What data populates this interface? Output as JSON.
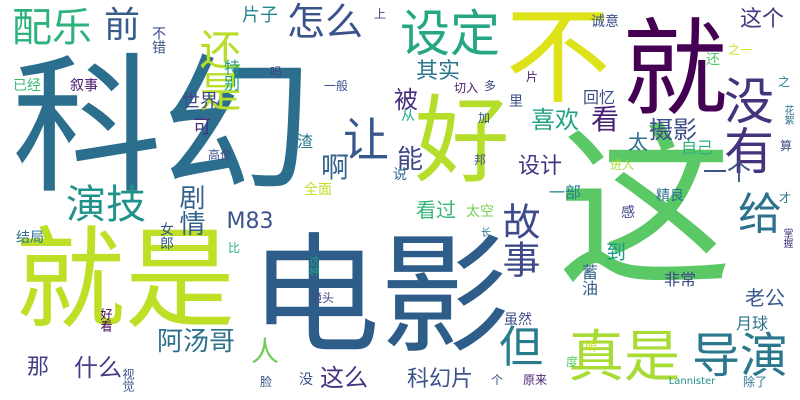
{
  "words": [
    {
      "text": "科幻",
      "color": "#2c6e8e"
    },
    {
      "text": "电影",
      "color": "#2f5d8a"
    },
    {
      "text": "这",
      "color": "#5ac864"
    },
    {
      "text": "就是",
      "color": "#bddf26"
    },
    {
      "text": "不",
      "color": "#dde318"
    },
    {
      "text": "就",
      "color": "#440154"
    },
    {
      "text": "好",
      "color": "#b5de2b"
    },
    {
      "text": "真是",
      "color": "#a8db34"
    },
    {
      "text": "导演",
      "color": "#2a788e"
    },
    {
      "text": "设定",
      "color": "#26a784"
    },
    {
      "text": "让",
      "color": "#38588c"
    },
    {
      "text": "没有",
      "color": "#46337e"
    },
    {
      "text": "还是",
      "color": "#b8de29"
    },
    {
      "text": "怎么",
      "color": "#3b528b"
    },
    {
      "text": "配乐",
      "color": "#2db27d"
    },
    {
      "text": "前",
      "color": "#365c8d"
    },
    {
      "text": "演技",
      "color": "#21918c"
    },
    {
      "text": "但",
      "color": "#287c8e"
    },
    {
      "text": "给",
      "color": "#2c728e"
    },
    {
      "text": "故事",
      "color": "#3e4a89"
    },
    {
      "text": "其实",
      "color": "#2c738e"
    },
    {
      "text": "被",
      "color": "#472d7b"
    },
    {
      "text": "看",
      "color": "#482173"
    },
    {
      "text": "能",
      "color": "#3f4889"
    },
    {
      "text": "喜欢",
      "color": "#20a386"
    },
    {
      "text": "设计",
      "color": "#453581"
    },
    {
      "text": "剧情",
      "color": "#33638d"
    },
    {
      "text": "M83",
      "color": "#3b528b"
    },
    {
      "text": "这个",
      "color": "#443983"
    },
    {
      "text": "一个",
      "color": "#3b528b"
    },
    {
      "text": "摄影",
      "color": "#3e4c8a"
    },
    {
      "text": "太",
      "color": "#2e6e8e"
    },
    {
      "text": "阿汤哥",
      "color": "#2d708e"
    },
    {
      "text": "人",
      "color": "#6ece58"
    },
    {
      "text": "这么",
      "color": "#46327e"
    },
    {
      "text": "什么",
      "color": "#433e85"
    },
    {
      "text": "那",
      "color": "#423f85"
    },
    {
      "text": "科幻片",
      "color": "#3a538b"
    },
    {
      "text": "老公",
      "color": "#38588c"
    },
    {
      "text": "看过",
      "color": "#35b779"
    },
    {
      "text": "啊",
      "color": "#33638d"
    },
    {
      "text": "片子",
      "color": "#23898e"
    },
    {
      "text": "可",
      "color": "#46307e"
    },
    {
      "text": "世界",
      "color": "#3f4788"
    },
    {
      "text": "特别",
      "color": "#1f9e89"
    },
    {
      "text": "到",
      "color": "#1e9b8a"
    },
    {
      "text": "非常",
      "color": "#3e4989"
    },
    {
      "text": "自己",
      "color": "#2db27d"
    },
    {
      "text": "月球",
      "color": "#2c728e"
    },
    {
      "text": "一部",
      "color": "#25848e"
    },
    {
      "text": "回忆",
      "color": "#3e4c8a"
    },
    {
      "text": "叙事",
      "color": "#481a6c"
    },
    {
      "text": "太空",
      "color": "#7ad151"
    },
    {
      "text": "全面",
      "color": "#c2df23"
    },
    {
      "text": "女郎",
      "color": "#38588c"
    },
    {
      "text": "结局",
      "color": "#2d708e"
    },
    {
      "text": "已经",
      "color": "#3bbb75"
    },
    {
      "text": "不错",
      "color": "#3b528b"
    },
    {
      "text": "高像",
      "color": "#3b528b"
    },
    {
      "text": "渣",
      "color": "#2a788e"
    },
    {
      "text": "从",
      "color": "#22a785"
    },
    {
      "text": "说",
      "color": "#31688e"
    },
    {
      "text": "蓄油",
      "color": "#35608d"
    },
    {
      "text": "虽然",
      "color": "#3e4a89"
    },
    {
      "text": "精良",
      "color": "#2e6e8e"
    },
    {
      "text": "感",
      "color": "#414487"
    },
    {
      "text": "进入",
      "color": "#addc30"
    },
    {
      "text": "诚意",
      "color": "#3b528b"
    },
    {
      "text": "里",
      "color": "#3b518b"
    },
    {
      "text": "片",
      "color": "#481a6c"
    },
    {
      "text": "多",
      "color": "#3e4a89"
    },
    {
      "text": "吗",
      "color": "#414487"
    },
    {
      "text": "一般",
      "color": "#3b528b"
    },
    {
      "text": "上",
      "color": "#3e4989"
    },
    {
      "text": "加",
      "color": "#3b528b"
    },
    {
      "text": "切入",
      "color": "#481a6c"
    },
    {
      "text": "邦",
      "color": "#3a538b"
    },
    {
      "text": "还",
      "color": "#58c765"
    },
    {
      "text": "之一",
      "color": "#d2e21b"
    },
    {
      "text": "之",
      "color": "#27808e"
    },
    {
      "text": "花絮",
      "color": "#2d708e"
    },
    {
      "text": "算",
      "color": "#3e4c8a"
    },
    {
      "text": "才",
      "color": "#2d708e"
    },
    {
      "text": "掌握",
      "color": "#433e85"
    },
    {
      "text": "比",
      "color": "#2db27d"
    },
    {
      "text": "这种",
      "color": "#20a486"
    },
    {
      "text": "长",
      "color": "#2e6e8e"
    },
    {
      "text": "好看",
      "color": "#440154"
    },
    {
      "text": "镜头",
      "color": "#3e4c8a"
    },
    {
      "text": "度",
      "color": "#5ec962"
    },
    {
      "text": "萌",
      "color": "#c8e020"
    },
    {
      "text": "视觉",
      "color": "#3b528b"
    },
    {
      "text": "脸",
      "color": "#3b528b"
    },
    {
      "text": "没",
      "color": "#3b528b"
    },
    {
      "text": "个",
      "color": "#3b528b"
    },
    {
      "text": "原来",
      "color": "#482677"
    },
    {
      "text": "Lannister",
      "color": "#21918c"
    },
    {
      "text": "除了",
      "color": "#2a788e"
    }
  ]
}
